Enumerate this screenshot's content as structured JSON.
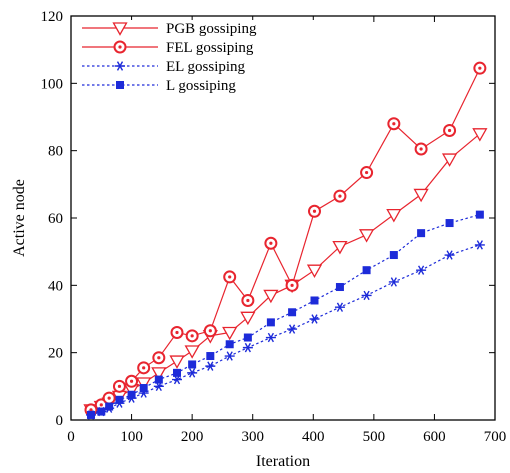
{
  "chart_data": {
    "type": "line",
    "xlabel": "Iteration",
    "ylabel": "Active node",
    "xlim": [
      0,
      700
    ],
    "ylim": [
      0,
      120
    ],
    "xticks": [
      0,
      100,
      200,
      300,
      400,
      500,
      600,
      700
    ],
    "yticks": [
      0,
      20,
      40,
      60,
      80,
      100,
      120
    ],
    "grid": false,
    "legend_position": "top-left",
    "series": [
      {
        "name": "PGB gossiping",
        "color": "#e8252f",
        "line_style": "solid",
        "marker": "triangle-down-open",
        "points": [
          [
            33,
            3
          ],
          [
            50,
            4
          ],
          [
            63,
            5
          ],
          [
            80,
            7
          ],
          [
            100,
            9
          ],
          [
            120,
            11
          ],
          [
            145,
            14
          ],
          [
            175,
            17.5
          ],
          [
            200,
            20.5
          ],
          [
            230,
            25
          ],
          [
            262,
            26
          ],
          [
            292,
            30.5
          ],
          [
            330,
            37
          ],
          [
            365,
            40
          ],
          [
            402,
            44.5
          ],
          [
            444,
            51.5
          ],
          [
            488,
            55
          ],
          [
            533,
            61
          ],
          [
            578,
            67
          ],
          [
            625,
            77.5
          ],
          [
            675,
            85
          ]
        ]
      },
      {
        "name": "FEL gossiping",
        "color": "#e8252f",
        "line_style": "solid",
        "marker": "circle-open-dot",
        "points": [
          [
            33,
            3
          ],
          [
            50,
            4.5
          ],
          [
            63,
            6.5
          ],
          [
            80,
            10
          ],
          [
            100,
            11.5
          ],
          [
            120,
            15.5
          ],
          [
            145,
            18.5
          ],
          [
            175,
            26
          ],
          [
            200,
            25
          ],
          [
            230,
            26.5
          ],
          [
            262,
            42.5
          ],
          [
            292,
            35.5
          ],
          [
            330,
            52.5
          ],
          [
            365,
            40
          ],
          [
            402,
            62
          ],
          [
            444,
            66.5
          ],
          [
            488,
            73.5
          ],
          [
            533,
            88
          ],
          [
            578,
            80.5
          ],
          [
            625,
            86
          ],
          [
            675,
            104.5
          ]
        ]
      },
      {
        "name": "EL gossiping",
        "color": "#1d2bd9",
        "line_style": "dotted",
        "marker": "asterisk",
        "points": [
          [
            33,
            1.5
          ],
          [
            50,
            2.5
          ],
          [
            63,
            3.5
          ],
          [
            80,
            5
          ],
          [
            100,
            6.5
          ],
          [
            120,
            8
          ],
          [
            145,
            10
          ],
          [
            175,
            12
          ],
          [
            200,
            14
          ],
          [
            230,
            16
          ],
          [
            262,
            19
          ],
          [
            292,
            21.5
          ],
          [
            330,
            24.5
          ],
          [
            365,
            27
          ],
          [
            402,
            30
          ],
          [
            444,
            33.5
          ],
          [
            488,
            37
          ],
          [
            533,
            41
          ],
          [
            578,
            44.5
          ],
          [
            625,
            49
          ],
          [
            675,
            52
          ]
        ]
      },
      {
        "name": "L gossiping",
        "color": "#1d2bd9",
        "line_style": "dotted",
        "marker": "square-filled",
        "points": [
          [
            33,
            1.5
          ],
          [
            50,
            2.5
          ],
          [
            63,
            4
          ],
          [
            80,
            6
          ],
          [
            100,
            7.5
          ],
          [
            120,
            9.5
          ],
          [
            145,
            12
          ],
          [
            175,
            14
          ],
          [
            200,
            16.5
          ],
          [
            230,
            19
          ],
          [
            262,
            22.5
          ],
          [
            292,
            24.5
          ],
          [
            330,
            29
          ],
          [
            365,
            32
          ],
          [
            402,
            35.5
          ],
          [
            444,
            39.5
          ],
          [
            488,
            44.5
          ],
          [
            533,
            49
          ],
          [
            578,
            55.5
          ],
          [
            625,
            58.5
          ],
          [
            675,
            61
          ]
        ]
      }
    ]
  }
}
